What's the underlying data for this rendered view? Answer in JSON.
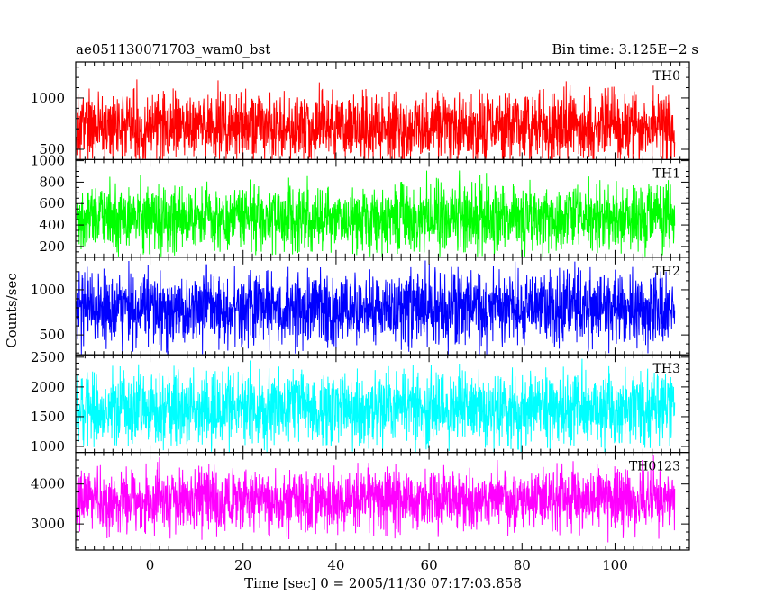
{
  "header": {
    "left_title": "ae051130071703_wam0_bst",
    "right_title": "Bin time: 3.125E−2 s"
  },
  "chart_data": {
    "type": "line",
    "ylabel": "Counts/sec",
    "xlabel": "Time [sec] 0 = 2005/11/30 07:17:03.858",
    "x_range": [
      -16,
      116
    ],
    "data_x_range": [
      -15.8,
      112.9
    ],
    "bin_time": 0.03125,
    "x_ticks": [
      0,
      20,
      40,
      60,
      80,
      100
    ],
    "x_minor_step": 2,
    "panels": [
      {
        "name": "TH0",
        "color": "#ff0000",
        "ylim": [
          400,
          1350
        ],
        "y_ticks": [
          500,
          1000
        ],
        "y_minor_step": 100,
        "trace_mean": 720,
        "trace_spread": 170,
        "trace_min": 405,
        "trace_max": 1345
      },
      {
        "name": "TH1",
        "color": "#00ff00",
        "ylim": [
          100,
          1010
        ],
        "y_ticks": [
          200,
          400,
          600,
          800,
          1000
        ],
        "y_minor_step": 50,
        "trace_mean": 470,
        "trace_spread": 155,
        "trace_min": 108,
        "trace_max": 1005
      },
      {
        "name": "TH2",
        "color": "#0000ff",
        "ylim": [
          280,
          1360
        ],
        "y_ticks": [
          500,
          1000
        ],
        "y_minor_step": 100,
        "trace_mean": 790,
        "trace_spread": 200,
        "trace_min": 285,
        "trace_max": 1355
      },
      {
        "name": "TH3",
        "color": "#00ffff",
        "ylim": [
          900,
          2540
        ],
        "y_ticks": [
          1000,
          1500,
          2000,
          2500
        ],
        "y_minor_step": 100,
        "trace_mean": 1640,
        "trace_spread": 300,
        "trace_min": 910,
        "trace_max": 2535
      },
      {
        "name": "TH0123",
        "color": "#ff00ff",
        "ylim": [
          2350,
          4790
        ],
        "y_ticks": [
          3000,
          4000
        ],
        "y_minor_step": 200,
        "trace_mean": 3600,
        "trace_spread": 390,
        "trace_min": 2360,
        "trace_max": 4785
      }
    ],
    "grid": false,
    "legend": "none"
  }
}
